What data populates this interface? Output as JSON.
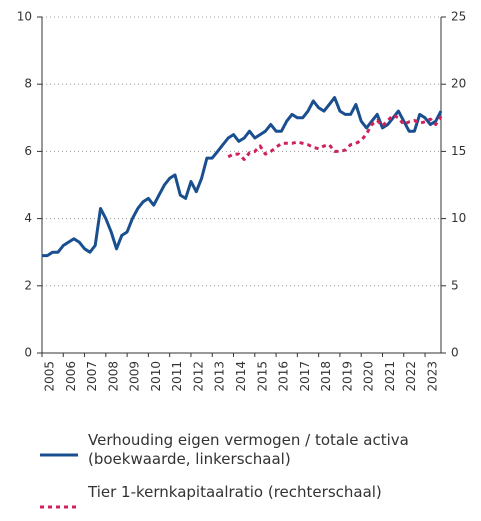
{
  "chart_data": {
    "type": "line",
    "categories": [
      "2005",
      null,
      null,
      null,
      "2006",
      null,
      null,
      null,
      "2007",
      null,
      null,
      null,
      "2008",
      null,
      null,
      null,
      "2009",
      null,
      null,
      null,
      "2010",
      null,
      null,
      null,
      "2011",
      null,
      null,
      null,
      "2012",
      null,
      null,
      null,
      "2013",
      null,
      null,
      null,
      "2014",
      null,
      null,
      null,
      "2015",
      null,
      null,
      null,
      "2016",
      null,
      null,
      null,
      "2017",
      null,
      null,
      null,
      "2018",
      null,
      null,
      null,
      "2019",
      null,
      null,
      null,
      "2020",
      null,
      null,
      null,
      "2021",
      null,
      null,
      null,
      "2022",
      null,
      null,
      null,
      "2023",
      null,
      null,
      null
    ],
    "series": [
      {
        "name": "Verhouding eigen vermogen / totale activa (boekwaarde, linkerschaal)",
        "color": "#1a4f8f",
        "line_style": "solid",
        "axis": "y",
        "values": [
          2.9,
          2.9,
          3.0,
          3.0,
          3.2,
          3.3,
          3.4,
          3.3,
          3.1,
          3.0,
          3.2,
          4.3,
          4.0,
          3.6,
          3.1,
          3.5,
          3.6,
          4.0,
          4.3,
          4.5,
          4.6,
          4.4,
          4.7,
          5.0,
          5.2,
          5.3,
          4.7,
          4.6,
          5.1,
          4.8,
          5.2,
          5.8,
          5.8,
          6.0,
          6.2,
          6.4,
          6.5,
          6.3,
          6.4,
          6.6,
          6.4,
          6.5,
          6.6,
          6.8,
          6.6,
          6.6,
          6.9,
          7.1,
          7.0,
          7.0,
          7.2,
          7.5,
          7.3,
          7.2,
          7.4,
          7.6,
          7.2,
          7.1,
          7.1,
          7.4,
          6.9,
          6.7,
          6.9,
          7.1,
          6.7,
          6.8,
          7.0,
          7.2,
          6.9,
          6.6,
          6.6,
          7.1,
          7.0,
          6.8,
          6.9,
          7.2
        ]
      },
      {
        "name": "Tier 1-kernkapitaalratio (rechterschaal)",
        "color": "#d0215a",
        "line_style": "dotted",
        "axis": "y2",
        "values": [
          null,
          null,
          null,
          null,
          null,
          null,
          null,
          null,
          null,
          null,
          null,
          null,
          null,
          null,
          null,
          null,
          null,
          null,
          null,
          null,
          null,
          null,
          null,
          null,
          null,
          null,
          null,
          null,
          null,
          null,
          null,
          null,
          null,
          null,
          null,
          14.6,
          14.8,
          14.8,
          14.4,
          14.9,
          15.0,
          15.4,
          14.8,
          15.0,
          15.3,
          15.6,
          15.6,
          15.6,
          15.7,
          15.6,
          15.5,
          15.3,
          15.2,
          15.4,
          15.5,
          15.0,
          15.0,
          15.1,
          15.5,
          15.6,
          15.8,
          16.3,
          17.0,
          17.3,
          16.9,
          17.3,
          17.7,
          17.5,
          17.0,
          17.2,
          17.3,
          17.1,
          17.2,
          17.4,
          17.0,
          17.6
        ]
      }
    ],
    "ylim": [
      0,
      10
    ],
    "yticks": [
      0,
      2,
      4,
      6,
      8,
      10
    ],
    "y2lim": [
      0,
      25
    ],
    "y2ticks": [
      0,
      5,
      10,
      15,
      20,
      25
    ],
    "grid": true
  }
}
